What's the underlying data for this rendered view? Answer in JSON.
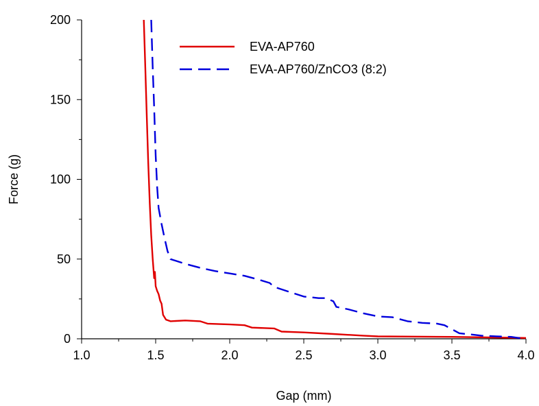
{
  "chart_data": {
    "type": "line",
    "title": "",
    "xlabel": "Gap (mm)",
    "ylabel": "Force (g)",
    "xlim": [
      1.0,
      4.0
    ],
    "ylim": [
      0,
      200
    ],
    "xticks": [
      1.0,
      1.5,
      2.0,
      2.5,
      3.0,
      3.5,
      4.0
    ],
    "xtick_labels": [
      "1.0",
      "1.5",
      "2.0",
      "2.5",
      "3.0",
      "3.5",
      "4.0"
    ],
    "yticks": [
      0,
      50,
      100,
      150,
      200
    ],
    "ytick_labels": [
      "0",
      "50",
      "100",
      "150",
      "200"
    ],
    "grid": false,
    "legend_position": "top-center",
    "series": [
      {
        "name": "EVA-AP760",
        "color": "#e00000",
        "dash": "solid",
        "points": [
          [
            1.42,
            200
          ],
          [
            1.43,
            170
          ],
          [
            1.44,
            140
          ],
          [
            1.45,
            110
          ],
          [
            1.46,
            85
          ],
          [
            1.47,
            65
          ],
          [
            1.48,
            50
          ],
          [
            1.49,
            38
          ],
          [
            1.495,
            42
          ],
          [
            1.5,
            33
          ],
          [
            1.51,
            30
          ],
          [
            1.52,
            28
          ],
          [
            1.53,
            24
          ],
          [
            1.54,
            22
          ],
          [
            1.55,
            15
          ],
          [
            1.57,
            12
          ],
          [
            1.6,
            11
          ],
          [
            1.7,
            11.5
          ],
          [
            1.8,
            11
          ],
          [
            1.85,
            9.5
          ],
          [
            2.0,
            9
          ],
          [
            2.1,
            8.5
          ],
          [
            2.15,
            7
          ],
          [
            2.3,
            6.5
          ],
          [
            2.35,
            4.5
          ],
          [
            2.5,
            4
          ],
          [
            2.7,
            3
          ],
          [
            2.9,
            2
          ],
          [
            3.0,
            1.5
          ],
          [
            3.5,
            1.2
          ],
          [
            4.0,
            0.5
          ]
        ]
      },
      {
        "name": "EVA-AP760/ZnCO3 (8:2)",
        "color": "#0000dd",
        "dash": "dashed",
        "points": [
          [
            1.47,
            200
          ],
          [
            1.475,
            185
          ],
          [
            1.48,
            170
          ],
          [
            1.49,
            145
          ],
          [
            1.5,
            115
          ],
          [
            1.51,
            95
          ],
          [
            1.52,
            82
          ],
          [
            1.54,
            72
          ],
          [
            1.56,
            63
          ],
          [
            1.58,
            55
          ],
          [
            1.6,
            50
          ],
          [
            1.7,
            47
          ],
          [
            1.8,
            44.5
          ],
          [
            1.9,
            42.5
          ],
          [
            2.0,
            41
          ],
          [
            2.1,
            39.5
          ],
          [
            2.2,
            37
          ],
          [
            2.27,
            35
          ],
          [
            2.3,
            32.5
          ],
          [
            2.4,
            29.5
          ],
          [
            2.5,
            26.5
          ],
          [
            2.6,
            25.5
          ],
          [
            2.65,
            25.5
          ],
          [
            2.7,
            23.5
          ],
          [
            2.72,
            20
          ],
          [
            2.8,
            18.5
          ],
          [
            2.9,
            16
          ],
          [
            3.0,
            14
          ],
          [
            3.1,
            13.5
          ],
          [
            3.2,
            11
          ],
          [
            3.3,
            10
          ],
          [
            3.4,
            9.5
          ],
          [
            3.45,
            8.5
          ],
          [
            3.5,
            6
          ],
          [
            3.55,
            3.5
          ],
          [
            3.65,
            2.5
          ],
          [
            3.7,
            2
          ],
          [
            3.8,
            1.5
          ],
          [
            3.9,
            1.2
          ],
          [
            3.95,
            0.5
          ],
          [
            4.0,
            0.2
          ]
        ]
      }
    ]
  }
}
